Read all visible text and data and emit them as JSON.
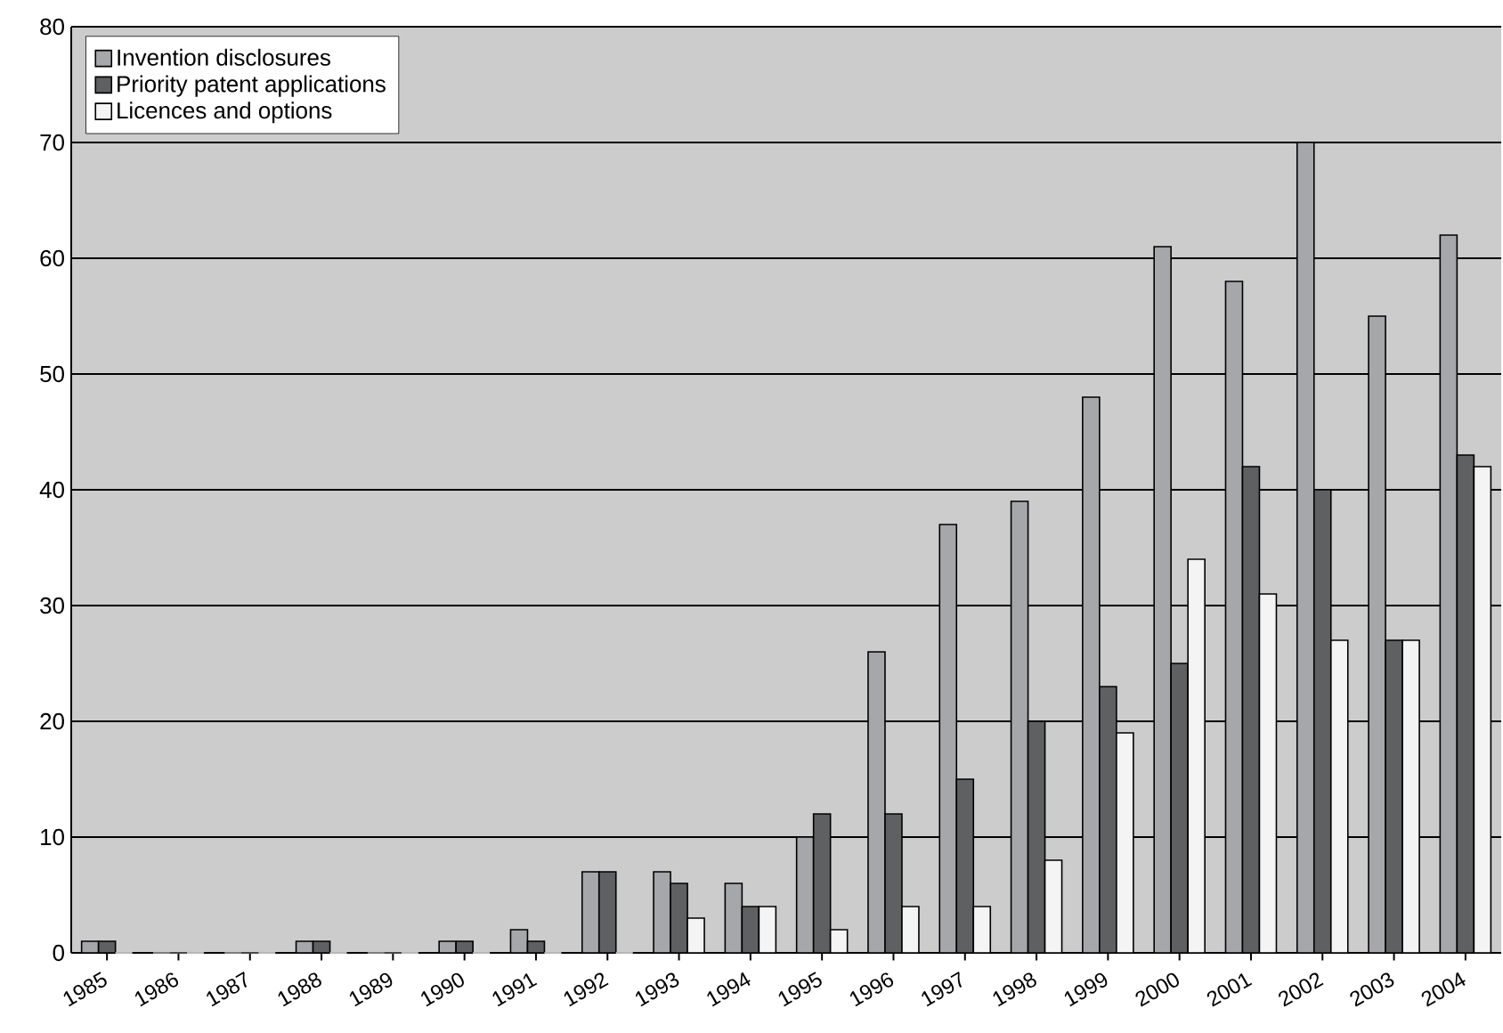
{
  "chart_data": {
    "type": "bar",
    "categories": [
      "1985",
      "1986",
      "1987",
      "1988",
      "1989",
      "1990",
      "1991",
      "1992",
      "1993",
      "1994",
      "1995",
      "1996",
      "1997",
      "1998",
      "1999",
      "2000",
      "2001",
      "2002",
      "2003",
      "2004"
    ],
    "series": [
      {
        "name": "Invention disclosures",
        "color": "#a6a7aa",
        "values": [
          1,
          0,
          0,
          1,
          0,
          1,
          2,
          7,
          7,
          6,
          10,
          26,
          37,
          39,
          48,
          61,
          58,
          70,
          55,
          62
        ]
      },
      {
        "name": "Priority patent applications",
        "color": "#5f6062",
        "values": [
          1,
          0,
          0,
          1,
          0,
          1,
          1,
          7,
          6,
          4,
          12,
          12,
          15,
          20,
          23,
          25,
          42,
          40,
          27,
          43
        ]
      },
      {
        "name": "Licences and options",
        "color": "#f4f4f4",
        "values": [
          0,
          0,
          0,
          0,
          0,
          0,
          0,
          0,
          3,
          4,
          2,
          4,
          4,
          8,
          19,
          34,
          31,
          27,
          27,
          42
        ]
      }
    ],
    "ylim": [
      0,
      80
    ],
    "yticks": [
      0,
      10,
      20,
      30,
      40,
      50,
      60,
      70,
      80
    ],
    "grid": "y",
    "legend": "top left"
  }
}
